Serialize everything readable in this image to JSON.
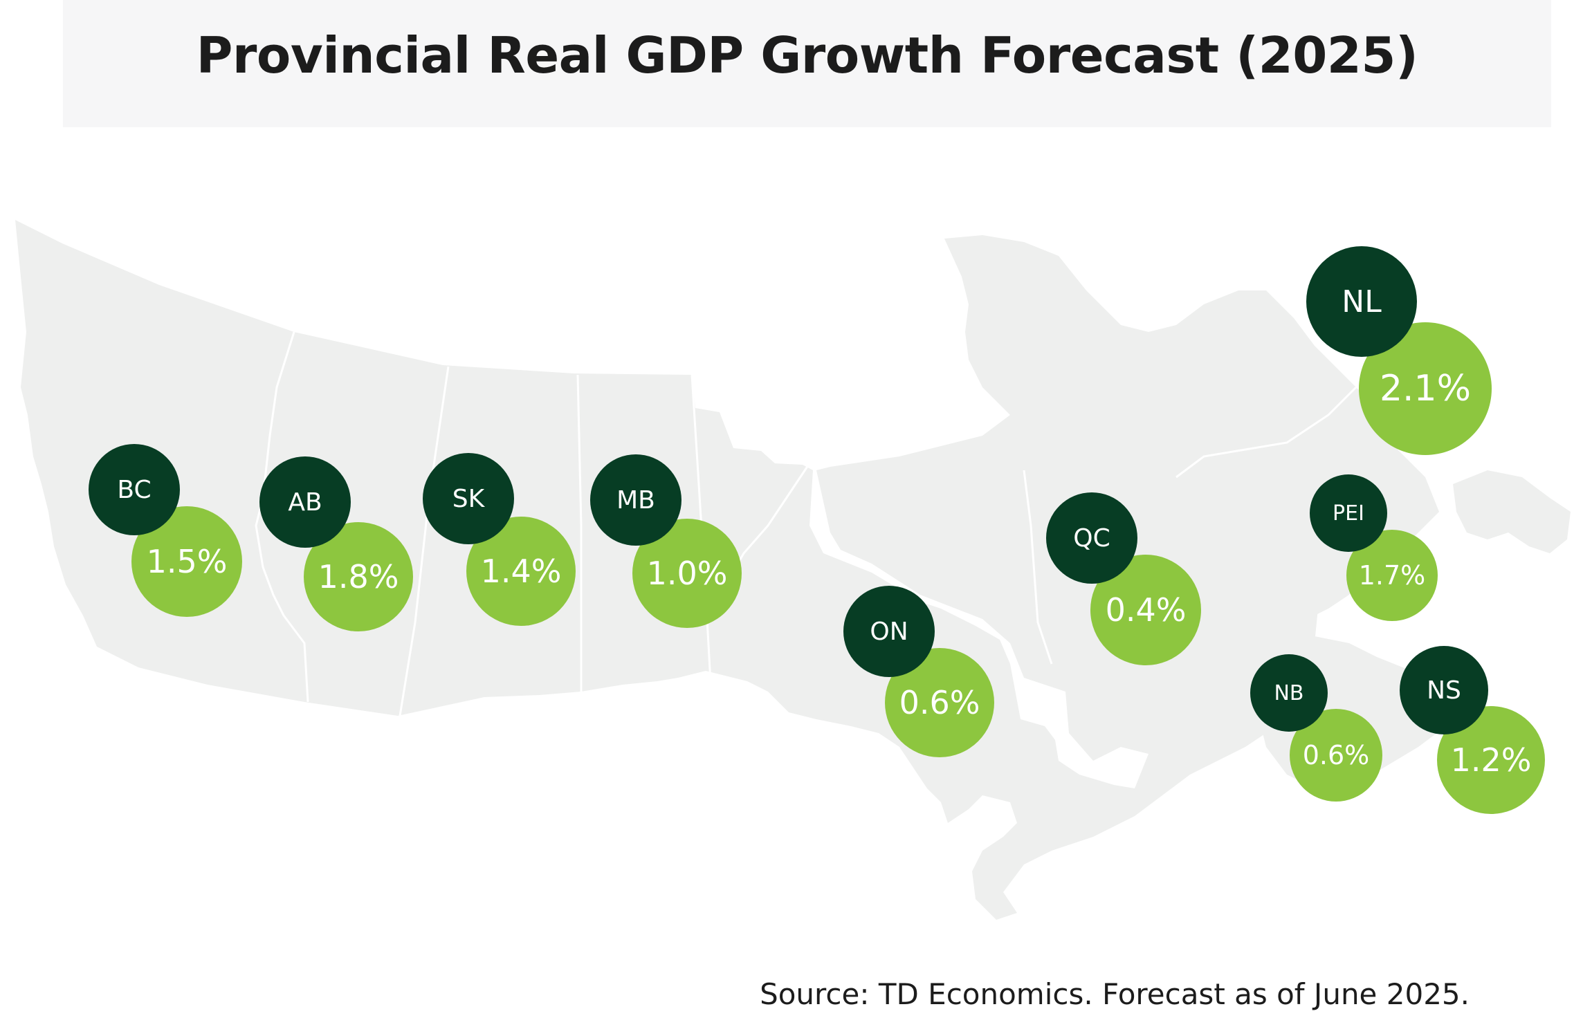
{
  "title": "Provincial Real GDP Growth Forecast (2025)",
  "source": "Source: TD Economics. Forecast as of June 2025.",
  "colors": {
    "value_bubble": "#8dc63f",
    "label_bubble": "#073d24",
    "land": "#eeefee",
    "border": "#ffffff"
  },
  "provinces": [
    {
      "code": "BC",
      "growth": "1.5%"
    },
    {
      "code": "AB",
      "growth": "1.8%"
    },
    {
      "code": "SK",
      "growth": "1.4%"
    },
    {
      "code": "MB",
      "growth": "1.0%"
    },
    {
      "code": "ON",
      "growth": "0.6%"
    },
    {
      "code": "QC",
      "growth": "0.4%"
    },
    {
      "code": "NL",
      "growth": "2.1%"
    },
    {
      "code": "PEI",
      "growth": "1.7%"
    },
    {
      "code": "NB",
      "growth": "0.6%"
    },
    {
      "code": "NS",
      "growth": "1.2%"
    }
  ]
}
